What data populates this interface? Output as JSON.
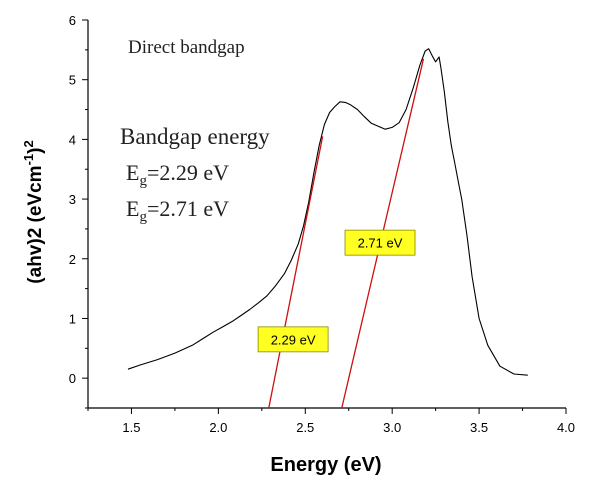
{
  "chart_data": {
    "type": "line",
    "xlabel": "Energy (eV)",
    "ylabel_parts": [
      "(ahv)2  (eVcm",
      "-1",
      ")",
      "2"
    ],
    "xlim": [
      1.25,
      4.0
    ],
    "ylim": [
      -0.5,
      6.0
    ],
    "x_ticks": [
      "1.5",
      "2.0",
      "2.5",
      "3.0",
      "3.5",
      "4.0"
    ],
    "y_ticks": [
      "0",
      "1",
      "2",
      "3",
      "4",
      "5",
      "6"
    ],
    "grid": false,
    "annotations": {
      "title": "Direct bandgap",
      "heading": "Bandgap energy",
      "line1": {
        "prefix": "E",
        "sub": "g",
        "suffix": "=2.29 eV"
      },
      "line2": {
        "prefix": "E",
        "sub": "g",
        "suffix": "=2.71 eV"
      }
    },
    "badges": [
      {
        "text": "2.29 eV",
        "x": 2.43,
        "y": 0.65
      },
      {
        "text": "2.71 eV",
        "x": 2.93,
        "y": 2.27
      }
    ],
    "series": [
      {
        "color": "#000000",
        "x": [
          1.48,
          1.55,
          1.65,
          1.75,
          1.85,
          1.92,
          1.97,
          2.02,
          2.08,
          2.13,
          2.18,
          2.23,
          2.28,
          2.33,
          2.38,
          2.42,
          2.46,
          2.49,
          2.52,
          2.55,
          2.58,
          2.61,
          2.64,
          2.67,
          2.7,
          2.73,
          2.76,
          2.8,
          2.84,
          2.88,
          2.92,
          2.96,
          3.0,
          3.04,
          3.08,
          3.12,
          3.16,
          3.19,
          3.21,
          3.23,
          3.25,
          3.27,
          3.28,
          3.3,
          3.32,
          3.34,
          3.36,
          3.38,
          3.4,
          3.43,
          3.46,
          3.5,
          3.55,
          3.62,
          3.7,
          3.78
        ],
        "y": [
          0.15,
          0.22,
          0.31,
          0.42,
          0.55,
          0.68,
          0.77,
          0.85,
          0.95,
          1.05,
          1.15,
          1.26,
          1.38,
          1.55,
          1.75,
          1.98,
          2.25,
          2.55,
          2.95,
          3.45,
          3.9,
          4.25,
          4.45,
          4.55,
          4.63,
          4.62,
          4.58,
          4.5,
          4.38,
          4.27,
          4.22,
          4.17,
          4.2,
          4.28,
          4.5,
          4.85,
          5.25,
          5.48,
          5.52,
          5.4,
          5.3,
          5.38,
          5.2,
          4.8,
          4.3,
          3.9,
          3.6,
          3.3,
          3.0,
          2.4,
          1.7,
          1.0,
          0.55,
          0.2,
          0.07,
          0.05
        ]
      }
    ],
    "fit_lines": [
      {
        "color": "#cc1010",
        "x": [
          2.29,
          2.6
        ],
        "y": [
          -0.5,
          4.05
        ]
      },
      {
        "color": "#cc1010",
        "x": [
          2.71,
          3.18
        ],
        "y": [
          -0.5,
          5.35
        ]
      }
    ]
  }
}
